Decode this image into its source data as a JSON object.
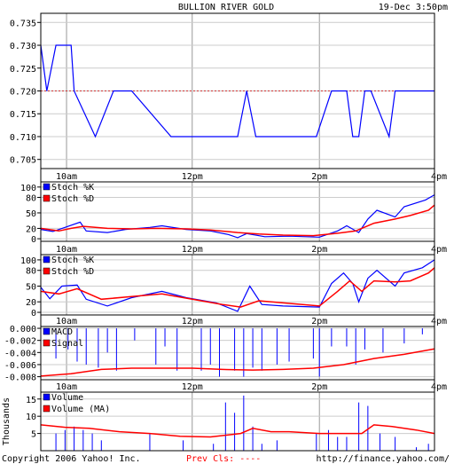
{
  "header": {
    "title": "BULLION RIVER GOLD",
    "datetime": "19-Dec 3:50pm"
  },
  "footer": {
    "copyright": "Copyright 2006 Yahoo! Inc.",
    "prev_close": "Prev Cls: ----",
    "url": "http://finance.yahoo.com/"
  },
  "colors": {
    "series_primary": "#0000ff",
    "series_secondary": "#ff0000",
    "grid": "#999999",
    "reference": "#cc3333",
    "border": "#000000",
    "background": "#ffffff"
  },
  "chart_data": [
    {
      "type": "line",
      "title": "BULLION RIVER GOLD",
      "x_ticks": [
        "10am",
        "12pm",
        "2pm",
        "4pm"
      ],
      "x_range": [
        9.5,
        16
      ],
      "ylim": [
        0.703,
        0.737
      ],
      "y_ticks": [
        "0.735",
        "0.730",
        "0.725",
        "0.720",
        "0.715",
        "0.710",
        "0.705"
      ],
      "reference_line": 0.72,
      "series": [
        {
          "values": [
            [
              9.5,
              0.73
            ],
            [
              9.6,
              0.72
            ],
            [
              9.75,
              0.73
            ],
            [
              10.0,
              0.73
            ],
            [
              10.05,
              0.72
            ],
            [
              10.4,
              0.71
            ],
            [
              10.7,
              0.72
            ],
            [
              11.0,
              0.72
            ],
            [
              11.65,
              0.71
            ],
            [
              12.35,
              0.71
            ],
            [
              12.75,
              0.71
            ],
            [
              12.9,
              0.72
            ],
            [
              13.05,
              0.71
            ],
            [
              14.05,
              0.71
            ],
            [
              14.3,
              0.72
            ],
            [
              14.55,
              0.72
            ],
            [
              14.65,
              0.71
            ],
            [
              14.75,
              0.71
            ],
            [
              14.85,
              0.72
            ],
            [
              14.95,
              0.72
            ],
            [
              15.25,
              0.71
            ],
            [
              15.35,
              0.72
            ],
            [
              16.0,
              0.72
            ]
          ]
        }
      ]
    },
    {
      "type": "line",
      "x_ticks": [
        "10am",
        "12pm",
        "2pm",
        "4pm"
      ],
      "x_range": [
        9.5,
        16
      ],
      "ylim": [
        -5,
        110
      ],
      "y_ticks": [
        "100",
        "80",
        "50",
        "20",
        "0"
      ],
      "series": [
        {
          "name": "Stoch %K",
          "values": [
            [
              9.5,
              18
            ],
            [
              9.7,
              14
            ],
            [
              9.9,
              22
            ],
            [
              10.15,
              32
            ],
            [
              10.25,
              15
            ],
            [
              10.6,
              12
            ],
            [
              10.9,
              18
            ],
            [
              11.3,
              22
            ],
            [
              11.5,
              25
            ],
            [
              11.9,
              18
            ],
            [
              12.3,
              15
            ],
            [
              12.6,
              8
            ],
            [
              12.75,
              2
            ],
            [
              12.9,
              10
            ],
            [
              13.2,
              4
            ],
            [
              13.6,
              5
            ],
            [
              14.1,
              3
            ],
            [
              14.4,
              15
            ],
            [
              14.55,
              25
            ],
            [
              14.75,
              12
            ],
            [
              14.9,
              38
            ],
            [
              15.05,
              55
            ],
            [
              15.35,
              42
            ],
            [
              15.5,
              62
            ],
            [
              15.85,
              75
            ],
            [
              16.0,
              85
            ]
          ]
        },
        {
          "name": "Stoch %D",
          "values": [
            [
              9.5,
              20
            ],
            [
              9.8,
              15
            ],
            [
              10.0,
              20
            ],
            [
              10.2,
              24
            ],
            [
              10.6,
              20
            ],
            [
              11.0,
              19
            ],
            [
              11.4,
              20
            ],
            [
              11.9,
              19
            ],
            [
              12.3,
              17
            ],
            [
              12.75,
              12
            ],
            [
              13.1,
              9
            ],
            [
              13.5,
              7
            ],
            [
              14.0,
              6
            ],
            [
              14.35,
              10
            ],
            [
              14.7,
              15
            ],
            [
              15.0,
              30
            ],
            [
              15.35,
              38
            ],
            [
              15.6,
              45
            ],
            [
              15.9,
              55
            ],
            [
              16.0,
              65
            ]
          ]
        }
      ]
    },
    {
      "type": "line",
      "x_ticks": [
        "10am",
        "12pm",
        "2pm",
        "4pm"
      ],
      "x_range": [
        9.5,
        16
      ],
      "ylim": [
        -5,
        110
      ],
      "y_ticks": [
        "100",
        "80",
        "50",
        "20",
        "0"
      ],
      "series": [
        {
          "name": "Stoch %K",
          "values": [
            [
              9.5,
              48
            ],
            [
              9.65,
              26
            ],
            [
              9.85,
              50
            ],
            [
              10.1,
              52
            ],
            [
              10.25,
              25
            ],
            [
              10.6,
              12
            ],
            [
              11.0,
              28
            ],
            [
              11.5,
              40
            ],
            [
              11.9,
              28
            ],
            [
              12.4,
              18
            ],
            [
              12.75,
              2
            ],
            [
              12.95,
              50
            ],
            [
              13.15,
              15
            ],
            [
              13.5,
              12
            ],
            [
              14.1,
              10
            ],
            [
              14.3,
              55
            ],
            [
              14.5,
              75
            ],
            [
              14.65,
              55
            ],
            [
              14.75,
              20
            ],
            [
              14.9,
              65
            ],
            [
              15.05,
              80
            ],
            [
              15.35,
              50
            ],
            [
              15.5,
              75
            ],
            [
              15.8,
              85
            ],
            [
              16.0,
              100
            ]
          ]
        },
        {
          "name": "Stoch %D",
          "values": [
            [
              9.5,
              40
            ],
            [
              9.8,
              35
            ],
            [
              10.1,
              45
            ],
            [
              10.5,
              25
            ],
            [
              11.0,
              30
            ],
            [
              11.5,
              35
            ],
            [
              12.0,
              25
            ],
            [
              12.5,
              15
            ],
            [
              12.8,
              10
            ],
            [
              13.1,
              22
            ],
            [
              13.5,
              18
            ],
            [
              14.1,
              12
            ],
            [
              14.4,
              40
            ],
            [
              14.6,
              60
            ],
            [
              14.8,
              40
            ],
            [
              15.0,
              60
            ],
            [
              15.35,
              58
            ],
            [
              15.6,
              60
            ],
            [
              15.9,
              75
            ],
            [
              16.0,
              85
            ]
          ]
        }
      ]
    },
    {
      "type": "bar",
      "x_ticks": [
        "10am",
        "12pm",
        "2pm",
        "4pm"
      ],
      "x_range": [
        9.5,
        16
      ],
      "ylim": [
        -0.0085,
        0.0003
      ],
      "y_ticks": [
        "0.000",
        "-0.002",
        "-0.004",
        "-0.006",
        "-0.008"
      ],
      "series": [
        {
          "name": "MACD",
          "values": [
            [
              9.75,
              -0.005
            ],
            [
              9.95,
              -0.0035
            ],
            [
              10.1,
              -0.0055
            ],
            [
              10.25,
              -0.006
            ],
            [
              10.45,
              -0.0065
            ],
            [
              10.6,
              -0.004
            ],
            [
              10.75,
              -0.007
            ],
            [
              11.05,
              -0.002
            ],
            [
              11.4,
              -0.006
            ],
            [
              11.55,
              -0.003
            ],
            [
              11.75,
              -0.007
            ],
            [
              12.15,
              -0.007
            ],
            [
              12.3,
              -0.006
            ],
            [
              12.45,
              -0.008
            ],
            [
              12.7,
              -0.007
            ],
            [
              12.85,
              -0.008
            ],
            [
              13.0,
              -0.0065
            ],
            [
              13.15,
              -0.007
            ],
            [
              13.4,
              -0.006
            ],
            [
              13.6,
              -0.0055
            ],
            [
              14.0,
              -0.005
            ],
            [
              14.1,
              -0.008
            ],
            [
              14.3,
              -0.003
            ],
            [
              14.55,
              -0.003
            ],
            [
              14.7,
              -0.006
            ],
            [
              14.85,
              -0.0035
            ],
            [
              15.15,
              -0.004
            ],
            [
              15.5,
              -0.0025
            ],
            [
              15.8,
              -0.001
            ]
          ]
        },
        {
          "name": "Signal",
          "type": "line",
          "values": [
            [
              9.5,
              -0.0079
            ],
            [
              10.0,
              -0.0075
            ],
            [
              10.5,
              -0.0068
            ],
            [
              11.0,
              -0.0066
            ],
            [
              11.5,
              -0.0066
            ],
            [
              12.0,
              -0.0066
            ],
            [
              12.5,
              -0.0068
            ],
            [
              13.0,
              -0.0069
            ],
            [
              13.5,
              -0.0068
            ],
            [
              14.0,
              -0.0066
            ],
            [
              14.5,
              -0.006
            ],
            [
              15.0,
              -0.005
            ],
            [
              15.5,
              -0.0043
            ],
            [
              16.0,
              -0.0034
            ]
          ]
        }
      ]
    },
    {
      "type": "bar",
      "x_ticks": [
        "10am",
        "12pm",
        "2pm",
        "4pm"
      ],
      "x_range": [
        9.5,
        16
      ],
      "ylabel": "Thousands",
      "ylim": [
        0,
        17
      ],
      "y_ticks": [
        "15",
        "10",
        "5"
      ],
      "series": [
        {
          "name": "Volume",
          "values": [
            [
              9.75,
              5
            ],
            [
              9.9,
              6
            ],
            [
              10.05,
              7
            ],
            [
              10.2,
              6
            ],
            [
              10.35,
              5
            ],
            [
              10.5,
              3
            ],
            [
              11.3,
              5
            ],
            [
              11.85,
              3
            ],
            [
              12.35,
              2
            ],
            [
              12.55,
              14
            ],
            [
              12.7,
              11
            ],
            [
              12.85,
              16
            ],
            [
              13.0,
              7
            ],
            [
              13.15,
              2
            ],
            [
              13.4,
              3
            ],
            [
              14.05,
              5
            ],
            [
              14.25,
              6
            ],
            [
              14.4,
              4
            ],
            [
              14.55,
              4
            ],
            [
              14.75,
              14
            ],
            [
              14.9,
              13
            ],
            [
              15.1,
              5
            ],
            [
              15.35,
              4
            ],
            [
              15.7,
              1
            ],
            [
              15.9,
              2
            ]
          ]
        },
        {
          "name": "Volume (MA)",
          "type": "line",
          "values": [
            [
              9.5,
              7.5
            ],
            [
              9.9,
              6.8
            ],
            [
              10.3,
              6.5
            ],
            [
              10.8,
              5.5
            ],
            [
              11.3,
              5.0
            ],
            [
              11.8,
              4.2
            ],
            [
              12.3,
              4.0
            ],
            [
              12.8,
              5.0
            ],
            [
              13.0,
              6.5
            ],
            [
              13.3,
              5.5
            ],
            [
              13.6,
              5.5
            ],
            [
              14.1,
              5.0
            ],
            [
              14.5,
              5.0
            ],
            [
              14.8,
              5.0
            ],
            [
              15.0,
              7.5
            ],
            [
              15.3,
              7.0
            ],
            [
              15.7,
              6.0
            ],
            [
              16.0,
              5.0
            ]
          ]
        }
      ]
    }
  ]
}
